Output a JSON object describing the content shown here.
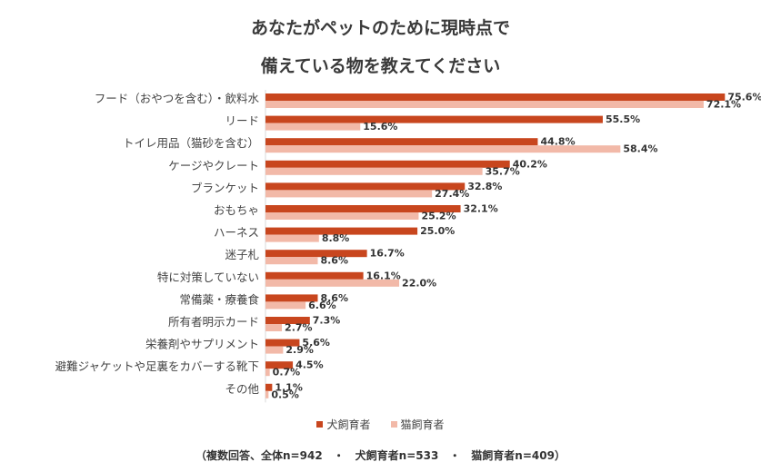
{
  "chart_data": {
    "type": "bar",
    "orientation": "horizontal",
    "title_lines": [
      "あなたがペットのために現時点で",
      "備えている物を教えてください"
    ],
    "categories": [
      "フード（おやつを含む）・飲料水",
      "リード",
      "トイレ用品（猫砂を含む）",
      "ケージやクレート",
      "ブランケット",
      "おもちゃ",
      "ハーネス",
      "迷子札",
      "特に対策していない",
      "常備薬・療養食",
      "所有者明示カード",
      "栄養剤やサプリメント",
      "避難ジャケットや足裏をカバーする靴下",
      "その他"
    ],
    "series": [
      {
        "name": "犬飼育者",
        "color": "#c8461e",
        "values": [
          75.6,
          55.5,
          44.8,
          40.2,
          32.8,
          32.1,
          25.0,
          16.7,
          16.1,
          8.6,
          7.3,
          5.6,
          4.5,
          1.1
        ]
      },
      {
        "name": "猫飼育者",
        "color": "#f2b9a8",
        "values": [
          72.1,
          15.6,
          58.4,
          35.7,
          27.4,
          25.2,
          8.8,
          8.6,
          22.0,
          6.6,
          2.7,
          2.9,
          0.7,
          0.5
        ]
      }
    ],
    "value_suffix": "%",
    "xlim": [
      0,
      76
    ],
    "grid": false,
    "legend_position": "bottom"
  },
  "footnote": "（複数回答、全体n=942　・　犬飼育者n=533　・　猫飼育者n=409）"
}
